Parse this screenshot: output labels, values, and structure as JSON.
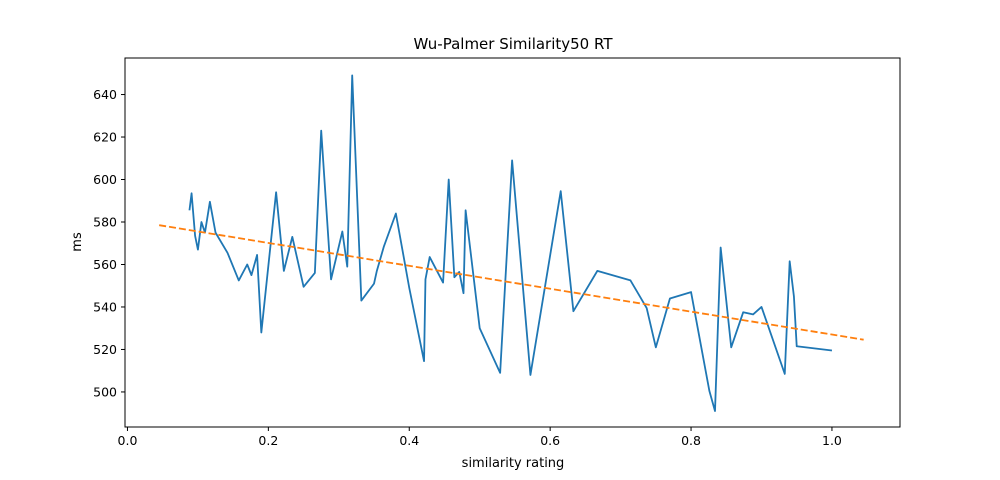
{
  "chart_data": {
    "type": "line",
    "title": "Wu-Palmer Similarity50 RT",
    "xlabel": "similarity rating",
    "ylabel": "ms",
    "xlim": [
      -0.0035,
      1.0966
    ],
    "ylim": [
      483.5,
      657.2
    ],
    "xticks": [
      0.0,
      0.2,
      0.4,
      0.6,
      0.8,
      1.0
    ],
    "xtick_labels": [
      "0.0",
      "0.2",
      "0.4",
      "0.6",
      "0.8",
      "1.0"
    ],
    "yticks": [
      500,
      520,
      540,
      560,
      580,
      600,
      620,
      640
    ],
    "ytick_labels": [
      "500",
      "520",
      "540",
      "560",
      "580",
      "600",
      "620",
      "640"
    ],
    "grid": false,
    "colors": {
      "series": "#1f77b4",
      "trend": "#ff7f0e",
      "axes": "#000000",
      "background": "#ffffff"
    },
    "series": [
      {
        "style": "solid",
        "x": [
          0.088,
          0.091,
          0.096,
          0.1,
          0.105,
          0.11,
          0.117,
          0.125,
          0.142,
          0.158,
          0.17,
          0.176,
          0.184,
          0.19,
          0.211,
          0.222,
          0.234,
          0.25,
          0.266,
          0.275,
          0.289,
          0.305,
          0.312,
          0.319,
          0.332,
          0.35,
          0.354,
          0.364,
          0.381,
          0.4,
          0.421,
          0.423,
          0.429,
          0.448,
          0.456,
          0.464,
          0.471,
          0.477,
          0.48,
          0.5,
          0.529,
          0.546,
          0.572,
          0.615,
          0.633,
          0.667,
          0.714,
          0.737,
          0.75,
          0.77,
          0.8,
          0.826,
          0.834,
          0.842,
          0.857,
          0.874,
          0.888,
          0.9,
          0.933,
          0.94,
          0.946,
          0.95,
          1.0
        ],
        "y": [
          585.5,
          593.5,
          573.5,
          567,
          580,
          575,
          589.5,
          575,
          565.5,
          552.5,
          560,
          555,
          564.5,
          528,
          594,
          557,
          573,
          549.5,
          556,
          623,
          553,
          575.5,
          559,
          649,
          543,
          551,
          557,
          568.5,
          584,
          549,
          514.5,
          553,
          563.5,
          551.5,
          600,
          554,
          556.5,
          546.5,
          585.5,
          530,
          509,
          609,
          508,
          594.5,
          538,
          557,
          552.5,
          539.5,
          521,
          544,
          547,
          500.5,
          491,
          568,
          521,
          537.5,
          536.5,
          540,
          508.5,
          561.5,
          545,
          521.5,
          519.5
        ]
      },
      {
        "style": "dashed",
        "x": [
          0.045,
          1.045
        ],
        "y": [
          578.5,
          524.6
        ]
      }
    ]
  }
}
